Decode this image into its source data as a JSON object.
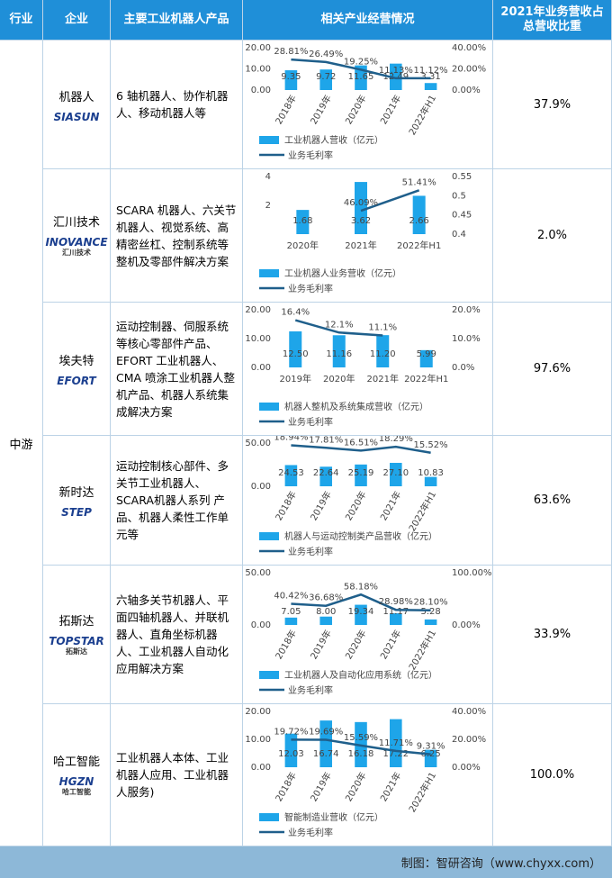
{
  "header": [
    "行业",
    "企业",
    "主要工业机器人产品",
    "相关产业经营情况",
    "2021年业务营收占总营收比重"
  ],
  "industry": "中游",
  "rows": [
    {
      "company": "机器人",
      "logo": "SIASUN",
      "products": "6 轴机器人、协作机器人、移动机器人等",
      "share": "37.9%",
      "chart": {
        "type": "bar-line",
        "categories": [
          "2018年",
          "2019年",
          "2020年",
          "2021年",
          "2022年H1"
        ],
        "rotated_labels": true,
        "bar_name": "工业机器人营收（亿元）",
        "line_name": "业务毛利率",
        "bar_color": "#1ea5e9",
        "line_color": "#1f5f8b",
        "bar_values": [
          9.35,
          9.72,
          11.65,
          12.49,
          3.31
        ],
        "line_values": [
          28.81,
          26.49,
          19.25,
          11.13,
          11.12
        ],
        "line_labels": [
          "28.81%",
          "26.49%",
          "19.25%",
          "11.13%",
          "11.12%"
        ],
        "ylim": [
          0,
          20
        ],
        "yticks": [
          {
            "value": 0,
            "label": "0.00"
          },
          {
            "value": 10,
            "label": "10.00"
          },
          {
            "value": 20,
            "label": "20.00"
          }
        ],
        "y2lim": [
          0,
          40
        ],
        "y2ticks": [
          {
            "value": 0,
            "label": "0.00%"
          },
          {
            "value": 20,
            "label": "20.00%"
          },
          {
            "value": 40,
            "label": "40.00%"
          }
        ]
      }
    },
    {
      "company": "汇川技术",
      "logo": "INOVANCE",
      "logo_sub": "汇川技术",
      "products": "SCARA 机器人、六关节机器人、视觉系统、高精密丝杠、控制系统等整机及零部件解决方案",
      "share": "2.0%",
      "chart": {
        "type": "bar-line",
        "categories": [
          "2020年",
          "2021年",
          "2022年H1"
        ],
        "rotated_labels": false,
        "bar_name": "工业机器人业务营收（亿元）",
        "line_name": "业务毛利率",
        "bar_color": "#1ea5e9",
        "line_color": "#1f5f8b",
        "bar_values": [
          1.68,
          3.62,
          2.66
        ],
        "line_values": [
          null,
          0.4609,
          0.5141
        ],
        "line_labels": [
          null,
          "46.09%",
          "51.41%"
        ],
        "ylim": [
          0,
          4
        ],
        "yticks": [
          2,
          4
        ],
        "y2lim": [
          0.4,
          0.55
        ],
        "y2ticks": [
          0.4,
          0.45,
          0.5,
          0.55
        ]
      }
    },
    {
      "company": "埃夫特",
      "logo": "EFORT",
      "products": "运动控制器、伺服系统等核心零部件产品、EFORT 工业机器人、CMA 喷涂工业机器人整机产品、机器人系统集成解决方案",
      "share": "97.6%",
      "chart": {
        "type": "bar-line",
        "categories": [
          "2019年",
          "2020年",
          "2021年",
          "2022年H1"
        ],
        "rotated_labels": false,
        "bar_name": "机器人整机及系统集成营收（亿元）",
        "line_name": "业务毛利率",
        "bar_color": "#1ea5e9",
        "line_color": "#1f5f8b",
        "bar_values": [
          12.5,
          11.16,
          11.2,
          5.99
        ],
        "bar_labels": [
          "12.50",
          "11.16",
          "11.20",
          "5.99"
        ],
        "line_values": [
          16.4,
          12.1,
          11.1,
          null
        ],
        "line_labels": [
          "16.4%",
          "12.1%",
          "11.1%",
          null
        ],
        "ylim": [
          0,
          20
        ],
        "yticks": [
          {
            "value": 0,
            "label": "0.00"
          },
          {
            "value": 10,
            "label": "10.00"
          },
          {
            "value": 20,
            "label": "20.00"
          }
        ],
        "y2lim": [
          0,
          20
        ],
        "y2ticks": [
          {
            "value": 0,
            "label": "0.0%"
          },
          {
            "value": 10,
            "label": "10.0%"
          },
          {
            "value": 20,
            "label": "20.0%"
          }
        ]
      }
    },
    {
      "company": "新时达",
      "logo": "STEP",
      "products": "运动控制核心部件、多关节工业机器人、SCARA机器人系列 产品、机器人柔性工作单元等",
      "share": "63.6%",
      "chart": {
        "type": "bar-line",
        "categories": [
          "2018年",
          "2019年",
          "2020年",
          "2021年",
          "2022年H1"
        ],
        "rotated_labels": true,
        "bar_name": "机器人与运动控制类产品营收（亿元）",
        "line_name": "业务毛利率",
        "bar_color": "#1ea5e9",
        "line_color": "#1f5f8b",
        "bar_values": [
          24.53,
          22.64,
          25.19,
          27.1,
          10.83
        ],
        "bar_labels": [
          "24.53",
          "22.64",
          "25.19",
          "27.10",
          "10.83"
        ],
        "line_values": [
          18.94,
          17.81,
          16.51,
          18.29,
          15.52
        ],
        "line_labels": [
          "18.94%",
          "17.81%",
          "16.51%",
          "18.29%",
          "15.52%"
        ],
        "ylim": [
          0,
          50
        ],
        "yticks": [
          {
            "value": 0,
            "label": "0.00"
          },
          {
            "value": 50,
            "label": "50.00"
          }
        ],
        "y2lim": [
          0,
          20
        ],
        "y2ticks": []
      }
    },
    {
      "company": "拓斯达",
      "logo": "TOPSTAR",
      "logo_sub": "拓斯达",
      "products": "六轴多关节机器人、平面四轴机器人、并联机器人、直角坐标机器人、工业机器人自动化应用解决方案",
      "share": "33.9%",
      "chart": {
        "type": "bar-line",
        "categories": [
          "2018年",
          "2019年",
          "2020年",
          "2021年",
          "2022年H1"
        ],
        "rotated_labels": true,
        "bar_name": "工业机器人及自动化应用系统（亿元）",
        "line_name": "业务毛利率",
        "bar_color": "#1ea5e9",
        "line_color": "#1f5f8b",
        "bar_values": [
          7.05,
          8,
          19.34,
          11.17,
          5.28
        ],
        "bar_labels": [
          "7.05",
          "8.00",
          "19.34",
          "11.17",
          "5.28"
        ],
        "line_values": [
          40.42,
          36.68,
          58.18,
          28.98,
          28.1
        ],
        "line_labels": [
          "40.42%",
          "36.68%",
          "58.18%",
          "28.98%",
          "28.10%"
        ],
        "ylim": [
          0,
          50
        ],
        "yticks": [
          {
            "value": 0,
            "label": "0.00"
          },
          {
            "value": 50,
            "label": "50.00"
          }
        ],
        "y2lim": [
          0,
          100
        ],
        "y2ticks": [
          {
            "value": 0,
            "label": "0.00%"
          },
          {
            "value": 100,
            "label": "100.00%"
          }
        ]
      }
    },
    {
      "company": "哈工智能",
      "logo": "HGZN",
      "logo_sub": "哈工智能",
      "products": "工业机器人本体、工业机器人应用、工业机器人服务)",
      "share": "100.0%",
      "chart": {
        "type": "bar-line",
        "categories": [
          "2018年",
          "2019年",
          "2020年",
          "2021年",
          "2022年H1"
        ],
        "rotated_labels": true,
        "bar_name": "智能制造业营收（亿元）",
        "line_name": "业务毛利率",
        "bar_color": "#1ea5e9",
        "line_color": "#1f5f8b",
        "bar_values": [
          12.03,
          16.74,
          16.18,
          17.22,
          6.25
        ],
        "line_values": [
          19.72,
          19.69,
          15.59,
          11.71,
          9.31
        ],
        "line_labels": [
          "19.72%",
          "19.69%",
          "15.59%",
          "11.71%",
          "9.31%"
        ],
        "ylim": [
          0,
          20
        ],
        "yticks": [
          {
            "value": 0,
            "label": "0.00"
          },
          {
            "value": 10,
            "label": "10.00"
          },
          {
            "value": 20,
            "label": "20.00"
          }
        ],
        "y2lim": [
          0,
          40
        ],
        "y2ticks": [
          {
            "value": 0,
            "label": "0.00%"
          },
          {
            "value": 20,
            "label": "20.00%"
          },
          {
            "value": 40,
            "label": "40.00%"
          }
        ]
      }
    }
  ],
  "footer": "制图：智研咨询（www.chyxx.com）"
}
